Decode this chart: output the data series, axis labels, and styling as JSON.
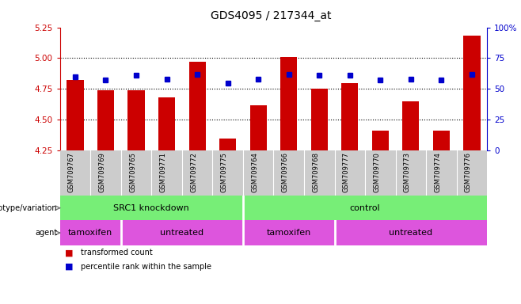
{
  "title": "GDS4095 / 217344_at",
  "samples": [
    "GSM709767",
    "GSM709769",
    "GSM709765",
    "GSM709771",
    "GSM709772",
    "GSM709775",
    "GSM709764",
    "GSM709766",
    "GSM709768",
    "GSM709777",
    "GSM709770",
    "GSM709773",
    "GSM709774",
    "GSM709776"
  ],
  "bar_values": [
    4.82,
    4.74,
    4.74,
    4.68,
    4.97,
    4.35,
    4.62,
    5.01,
    4.75,
    4.8,
    4.41,
    4.65,
    4.41,
    5.18
  ],
  "percentile_values": [
    60,
    57,
    61,
    58,
    62,
    55,
    58,
    62,
    61,
    61,
    57,
    58,
    57,
    62
  ],
  "ylim_left": [
    4.25,
    5.25
  ],
  "ylim_right": [
    0,
    100
  ],
  "yticks_left": [
    4.25,
    4.5,
    4.75,
    5.0,
    5.25
  ],
  "yticks_right": [
    0,
    25,
    50,
    75,
    100
  ],
  "ytick_labels_right": [
    "0",
    "25",
    "50",
    "75",
    "100%"
  ],
  "hlines": [
    4.5,
    4.75,
    5.0
  ],
  "bar_color": "#cc0000",
  "percentile_color": "#0000cc",
  "bar_base": 4.25,
  "genotype_groups": [
    {
      "label": "SRC1 knockdown",
      "start": 0,
      "end": 6
    },
    {
      "label": "control",
      "start": 6,
      "end": 14
    }
  ],
  "agent_group_data": [
    {
      "label": "tamoxifen",
      "start": 0,
      "end": 2
    },
    {
      "label": "untreated",
      "start": 2,
      "end": 6
    },
    {
      "label": "tamoxifen",
      "start": 6,
      "end": 9
    },
    {
      "label": "untreated",
      "start": 9,
      "end": 14
    }
  ],
  "genotype_color": "#77ee77",
  "agent_color": "#dd55dd",
  "legend_items": [
    {
      "label": "transformed count",
      "color": "#cc0000"
    },
    {
      "label": "percentile rank within the sample",
      "color": "#0000cc"
    }
  ],
  "left_axis_color": "#cc0000",
  "right_axis_color": "#0000cc",
  "xtick_bg_color": "#cccccc",
  "row_label_color": "#555555"
}
